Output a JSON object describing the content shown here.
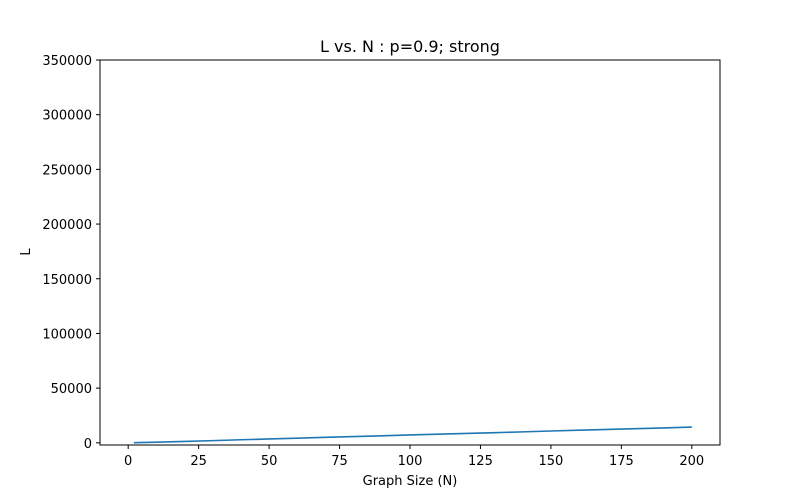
{
  "chart_data": {
    "type": "line",
    "title": "L vs. N : p=0.9; strong",
    "xlabel": "Graph Size (N)",
    "ylabel": "L",
    "xlim": [
      -10,
      210
    ],
    "ylim": [
      -2000,
      350000
    ],
    "xticks": [
      0,
      25,
      50,
      75,
      100,
      125,
      150,
      175,
      200
    ],
    "yticks": [
      0,
      50000,
      100000,
      150000,
      200000,
      250000,
      300000,
      350000
    ],
    "grid": false,
    "legend": "none",
    "series": [
      {
        "color": "#1f77b4",
        "x": [
          2,
          10,
          20,
          30,
          40,
          50,
          60,
          70,
          80,
          90,
          100,
          110,
          120,
          130,
          140,
          150,
          160,
          170,
          180,
          190,
          200
        ],
        "y": [
          100,
          600,
          1300,
          2000,
          2800,
          3500,
          4200,
          5000,
          5700,
          6400,
          7200,
          7900,
          8600,
          9300,
          10000,
          10800,
          11500,
          12200,
          12900,
          13600,
          14400
        ]
      }
    ]
  }
}
